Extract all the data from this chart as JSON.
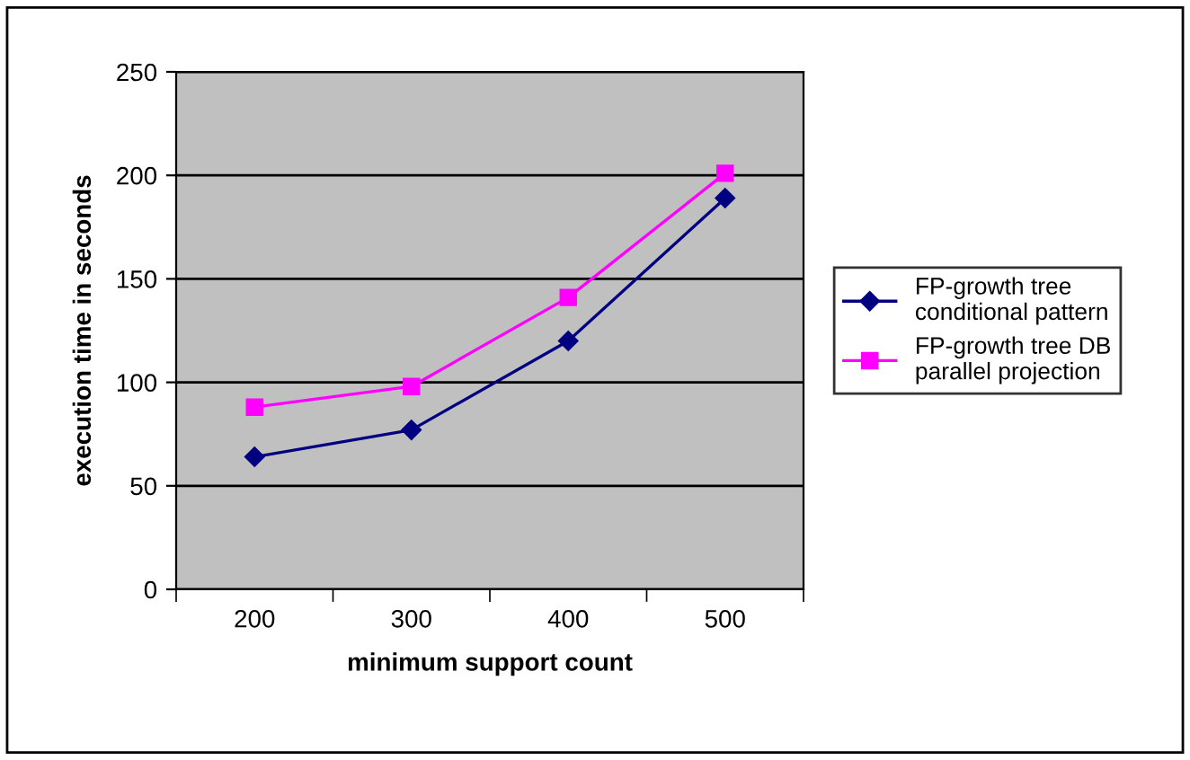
{
  "chart_data": {
    "type": "line",
    "xlabel": "minimum support count",
    "ylabel": "execution time in seconds",
    "categories": [
      "200",
      "300",
      "400",
      "500"
    ],
    "series": [
      {
        "name": "FP-growth tree conditional pattern",
        "color": "#000080",
        "values": [
          64,
          77,
          120,
          189
        ],
        "marker": "diamond"
      },
      {
        "name": "FP-growth tree DB parallel projection",
        "color": "#ff00ff",
        "values": [
          88,
          98,
          141,
          201
        ],
        "marker": "square"
      }
    ],
    "ylim": [
      0,
      250
    ],
    "yticks": [
      0,
      50,
      100,
      150,
      200,
      250
    ],
    "grid": "y",
    "legend": "right",
    "line_style": "solid"
  }
}
